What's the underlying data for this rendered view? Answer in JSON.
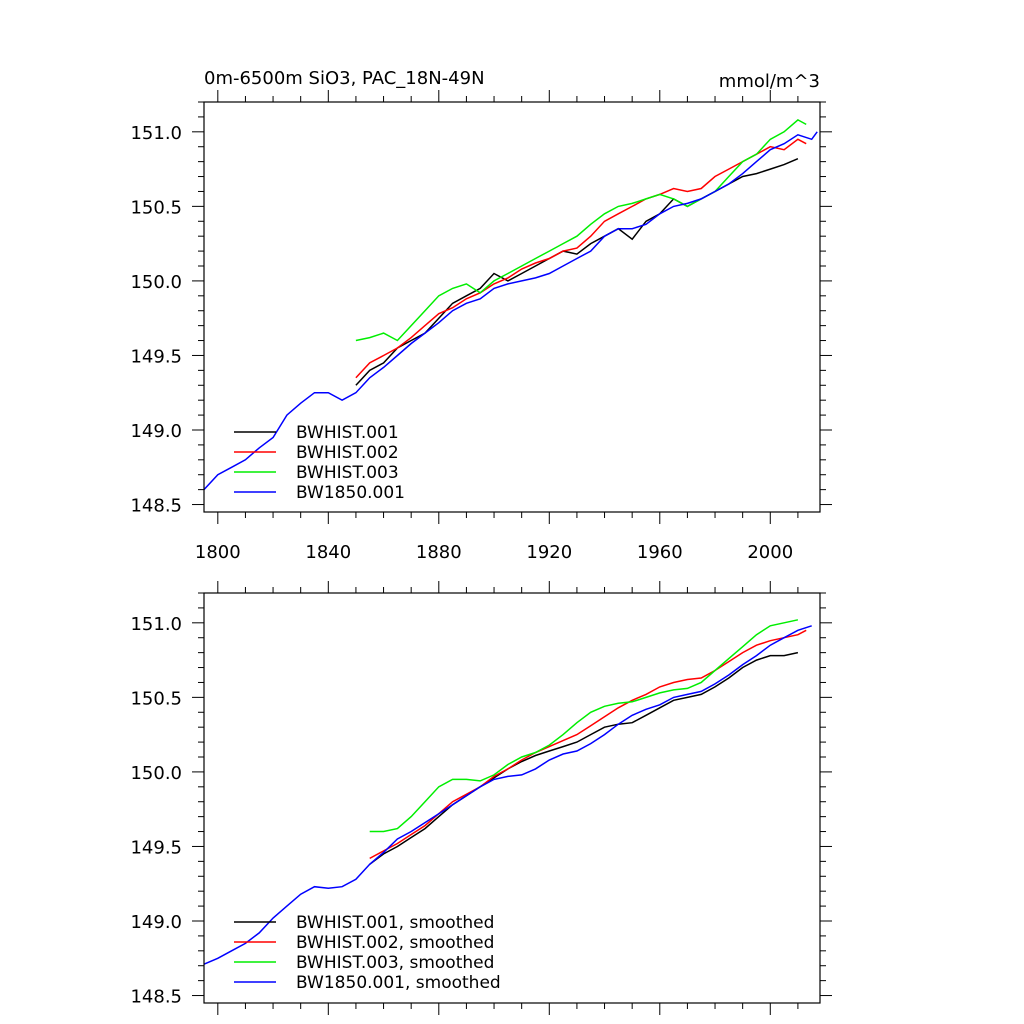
{
  "chart_data": [
    {
      "type": "line",
      "title": "0m-6500m SiO3, PAC_18N-49N",
      "units": "mmol/m^3",
      "xlim": [
        1795,
        2018
      ],
      "ylim": [
        148.45,
        151.2
      ],
      "x_ticks": [
        1800,
        1840,
        1880,
        1920,
        1960,
        2000
      ],
      "y_ticks": [
        148.5,
        149.0,
        149.5,
        150.0,
        150.5,
        151.0
      ],
      "x_tick_labels": [
        "1800",
        "1840",
        "1880",
        "1920",
        "1960",
        "2000"
      ],
      "y_tick_labels": [
        "148.5",
        "149.0",
        "149.5",
        "150.0",
        "150.5",
        "151.0"
      ],
      "legend_position": "bottom-left",
      "grid": false,
      "series": [
        {
          "name": "BWHIST.001",
          "color": "#000000",
          "x": [
            1850,
            1855,
            1860,
            1865,
            1870,
            1875,
            1880,
            1885,
            1890,
            1895,
            1900,
            1905,
            1910,
            1915,
            1920,
            1925,
            1930,
            1935,
            1940,
            1945,
            1950,
            1955,
            1960,
            1965,
            1970,
            1975,
            1980,
            1985,
            1990,
            1995,
            2000,
            2005,
            2010
          ],
          "y": [
            149.3,
            149.4,
            149.45,
            149.55,
            149.6,
            149.65,
            149.75,
            149.85,
            149.9,
            149.95,
            150.05,
            150.0,
            150.05,
            150.1,
            150.15,
            150.2,
            150.18,
            150.25,
            150.3,
            150.35,
            150.28,
            150.4,
            150.45,
            150.55,
            150.5,
            150.55,
            150.6,
            150.65,
            150.7,
            150.72,
            150.75,
            150.78,
            150.82
          ]
        },
        {
          "name": "BWHIST.002",
          "color": "#ff0000",
          "x": [
            1850,
            1855,
            1860,
            1865,
            1870,
            1875,
            1880,
            1885,
            1890,
            1895,
            1900,
            1905,
            1910,
            1915,
            1920,
            1925,
            1930,
            1935,
            1940,
            1945,
            1950,
            1955,
            1960,
            1965,
            1970,
            1975,
            1980,
            1985,
            1990,
            1995,
            2000,
            2005,
            2010,
            2013
          ],
          "y": [
            149.35,
            149.45,
            149.5,
            149.55,
            149.62,
            149.7,
            149.78,
            149.82,
            149.88,
            149.92,
            149.98,
            150.02,
            150.08,
            150.12,
            150.15,
            150.2,
            150.22,
            150.3,
            150.4,
            150.45,
            150.5,
            150.55,
            150.58,
            150.62,
            150.6,
            150.62,
            150.7,
            150.75,
            150.8,
            150.85,
            150.9,
            150.88,
            150.95,
            150.92
          ]
        },
        {
          "name": "BWHIST.003",
          "color": "#00ee00",
          "x": [
            1850,
            1855,
            1860,
            1865,
            1870,
            1875,
            1880,
            1885,
            1890,
            1895,
            1900,
            1905,
            1910,
            1915,
            1920,
            1925,
            1930,
            1935,
            1940,
            1945,
            1950,
            1955,
            1960,
            1965,
            1970,
            1975,
            1980,
            1985,
            1990,
            1995,
            2000,
            2005,
            2010,
            2013
          ],
          "y": [
            149.6,
            149.62,
            149.65,
            149.6,
            149.7,
            149.8,
            149.9,
            149.95,
            149.98,
            149.92,
            150.0,
            150.05,
            150.1,
            150.15,
            150.2,
            150.25,
            150.3,
            150.38,
            150.45,
            150.5,
            150.52,
            150.55,
            150.58,
            150.55,
            150.5,
            150.55,
            150.6,
            150.7,
            150.8,
            150.85,
            150.95,
            151.0,
            151.08,
            151.05
          ]
        },
        {
          "name": "BW1850.001",
          "color": "#0000ff",
          "x": [
            1795,
            1800,
            1805,
            1810,
            1815,
            1820,
            1825,
            1830,
            1835,
            1840,
            1845,
            1850,
            1855,
            1860,
            1865,
            1870,
            1875,
            1880,
            1885,
            1890,
            1895,
            1900,
            1905,
            1910,
            1915,
            1920,
            1925,
            1930,
            1935,
            1940,
            1945,
            1950,
            1955,
            1960,
            1965,
            1970,
            1975,
            1980,
            1985,
            1990,
            1995,
            2000,
            2005,
            2010,
            2015,
            2017
          ],
          "y": [
            148.6,
            148.7,
            148.75,
            148.8,
            148.88,
            148.95,
            149.1,
            149.18,
            149.25,
            149.25,
            149.2,
            149.25,
            149.35,
            149.42,
            149.5,
            149.58,
            149.65,
            149.72,
            149.8,
            149.85,
            149.88,
            149.95,
            149.98,
            150.0,
            150.02,
            150.05,
            150.1,
            150.15,
            150.2,
            150.3,
            150.35,
            150.35,
            150.38,
            150.45,
            150.5,
            150.52,
            150.55,
            150.6,
            150.65,
            150.72,
            150.8,
            150.88,
            150.92,
            150.98,
            150.95,
            151.0
          ]
        }
      ]
    },
    {
      "type": "line",
      "xlim": [
        1795,
        2018
      ],
      "ylim": [
        148.45,
        151.2
      ],
      "x_ticks": [
        1800,
        1840,
        1880,
        1920,
        1960,
        2000
      ],
      "y_ticks": [
        148.5,
        149.0,
        149.5,
        150.0,
        150.5,
        151.0
      ],
      "y_tick_labels": [
        "148.5",
        "149.0",
        "149.5",
        "150.0",
        "150.5",
        "151.0"
      ],
      "legend_position": "bottom-left",
      "grid": false,
      "series": [
        {
          "name": "BWHIST.001, smoothed",
          "color": "#000000",
          "x": [
            1855,
            1860,
            1865,
            1870,
            1875,
            1880,
            1885,
            1890,
            1895,
            1900,
            1905,
            1910,
            1915,
            1920,
            1925,
            1930,
            1935,
            1940,
            1945,
            1950,
            1955,
            1960,
            1965,
            1970,
            1975,
            1980,
            1985,
            1990,
            1995,
            2000,
            2005,
            2010
          ],
          "y": [
            149.38,
            149.45,
            149.5,
            149.56,
            149.62,
            149.7,
            149.78,
            149.84,
            149.9,
            149.96,
            150.02,
            150.07,
            150.11,
            150.14,
            150.17,
            150.2,
            150.25,
            150.3,
            150.32,
            150.33,
            150.38,
            150.43,
            150.48,
            150.5,
            150.52,
            150.57,
            150.63,
            150.7,
            150.75,
            150.78,
            150.78,
            150.8
          ]
        },
        {
          "name": "BWHIST.002, smoothed",
          "color": "#ff0000",
          "x": [
            1855,
            1860,
            1865,
            1870,
            1875,
            1880,
            1885,
            1890,
            1895,
            1900,
            1905,
            1910,
            1915,
            1920,
            1925,
            1930,
            1935,
            1940,
            1945,
            1950,
            1955,
            1960,
            1965,
            1970,
            1975,
            1980,
            1985,
            1990,
            1995,
            2000,
            2005,
            2010,
            2013
          ],
          "y": [
            149.42,
            149.47,
            149.52,
            149.58,
            149.64,
            149.72,
            149.8,
            149.85,
            149.9,
            149.97,
            150.02,
            150.08,
            150.13,
            150.17,
            150.21,
            150.25,
            150.31,
            150.37,
            150.43,
            150.48,
            150.52,
            150.57,
            150.6,
            150.62,
            150.63,
            150.68,
            150.74,
            150.8,
            150.85,
            150.88,
            150.9,
            150.92,
            150.95
          ]
        },
        {
          "name": "BWHIST.003, smoothed",
          "color": "#00ee00",
          "x": [
            1855,
            1860,
            1865,
            1870,
            1875,
            1880,
            1885,
            1890,
            1895,
            1900,
            1905,
            1910,
            1915,
            1920,
            1925,
            1930,
            1935,
            1940,
            1945,
            1950,
            1955,
            1960,
            1965,
            1970,
            1975,
            1980,
            1985,
            1990,
            1995,
            2000,
            2005,
            2010
          ],
          "y": [
            149.6,
            149.6,
            149.62,
            149.7,
            149.8,
            149.9,
            149.95,
            149.95,
            149.94,
            149.98,
            150.05,
            150.1,
            150.13,
            150.18,
            150.25,
            150.33,
            150.4,
            150.44,
            150.46,
            150.47,
            150.5,
            150.53,
            150.55,
            150.56,
            150.6,
            150.68,
            150.76,
            150.84,
            150.92,
            150.98,
            151.0,
            151.02
          ]
        },
        {
          "name": "BW1850.001, smoothed",
          "color": "#0000ff",
          "x": [
            1795,
            1800,
            1805,
            1810,
            1815,
            1820,
            1825,
            1830,
            1835,
            1840,
            1845,
            1850,
            1855,
            1860,
            1865,
            1870,
            1875,
            1880,
            1885,
            1890,
            1895,
            1900,
            1905,
            1910,
            1915,
            1920,
            1925,
            1930,
            1935,
            1940,
            1945,
            1950,
            1955,
            1960,
            1965,
            1970,
            1975,
            1980,
            1985,
            1990,
            1995,
            2000,
            2005,
            2010,
            2015
          ],
          "y": [
            148.71,
            148.75,
            148.8,
            148.85,
            148.92,
            149.02,
            149.1,
            149.18,
            149.23,
            149.22,
            149.23,
            149.28,
            149.38,
            149.46,
            149.55,
            149.6,
            149.66,
            149.72,
            149.78,
            149.84,
            149.9,
            149.95,
            149.97,
            149.98,
            150.02,
            150.08,
            150.12,
            150.14,
            150.19,
            150.25,
            150.32,
            150.38,
            150.42,
            150.45,
            150.5,
            150.52,
            150.54,
            150.59,
            150.65,
            150.72,
            150.78,
            150.85,
            150.9,
            150.95,
            150.98
          ]
        }
      ]
    }
  ]
}
